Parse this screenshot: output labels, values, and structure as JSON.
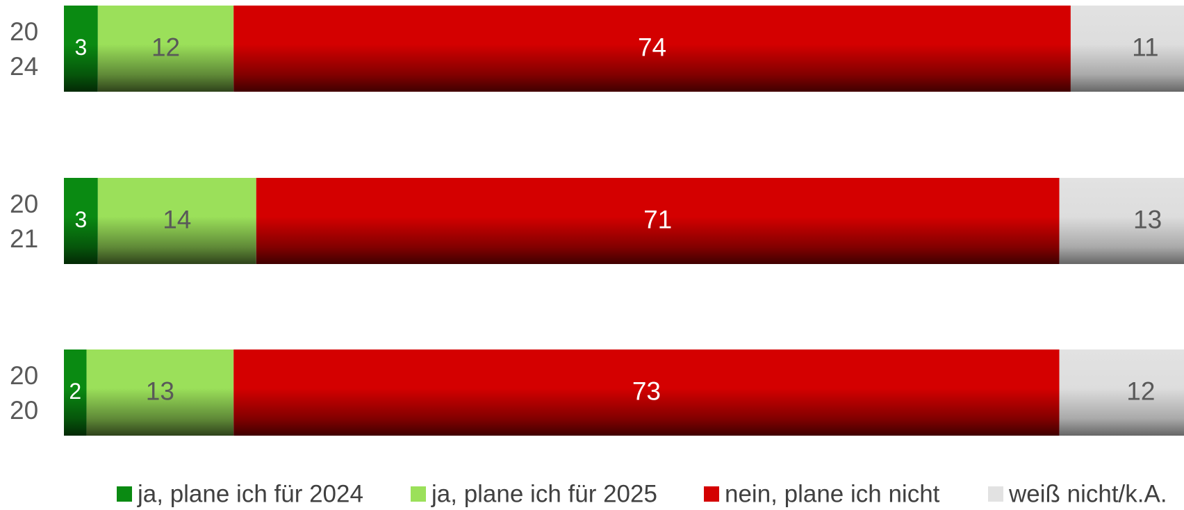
{
  "chart_data": {
    "type": "bar",
    "orientation": "horizontal",
    "stacked": true,
    "categories": [
      [
        "20",
        "24"
      ],
      [
        "20",
        "21"
      ],
      [
        "20",
        "20"
      ]
    ],
    "series": [
      {
        "name": "ja, plane ich für 2024",
        "values": [
          3,
          3,
          2
        ],
        "color": "#0a8a12",
        "label_color": "#ffffff"
      },
      {
        "name": "ja, plane ich für 2025",
        "values": [
          12,
          14,
          13
        ],
        "color": "#9be05a",
        "label_color": "#595959"
      },
      {
        "name": "nein, plane ich nicht",
        "values": [
          74,
          71,
          73
        ],
        "color": "#d40000",
        "label_color": "#ffffff"
      },
      {
        "name": "weiß nicht/k.A.",
        "values": [
          11,
          13,
          12
        ],
        "color": "#e2e2e2",
        "label_color": "#595959"
      }
    ],
    "xlim": [
      0,
      100
    ],
    "grid": false,
    "legend_position": "bottom"
  }
}
